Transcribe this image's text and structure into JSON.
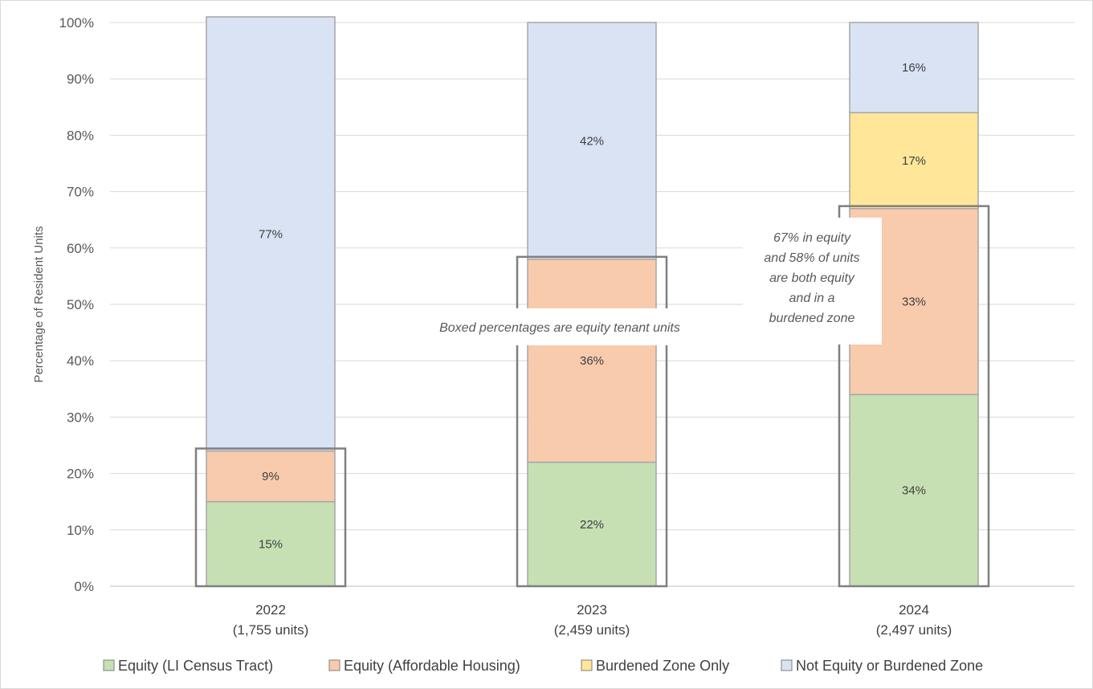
{
  "chart_data": {
    "type": "bar",
    "stacked": true,
    "title": "",
    "xlabel": "",
    "ylabel": "Percentage of Resident Units",
    "ylim": [
      0,
      100
    ],
    "yticks": [
      "0%",
      "10%",
      "20%",
      "30%",
      "40%",
      "50%",
      "60%",
      "70%",
      "80%",
      "90%",
      "100%"
    ],
    "grid": true,
    "legend_position": "bottom",
    "categories": [
      {
        "year": "2022",
        "units": "(1,755 units)"
      },
      {
        "year": "2023",
        "units": "(2,459 units)"
      },
      {
        "year": "2024",
        "units": "(2,497 units)"
      }
    ],
    "series": [
      {
        "name": "Equity (LI Census Tract)",
        "color": "#c6e0b4",
        "values": [
          15,
          22,
          34
        ],
        "labels": [
          "15%",
          "22%",
          "34%"
        ]
      },
      {
        "name": "Equity (Affordable Housing)",
        "color": "#f8cbad",
        "values": [
          9,
          36,
          33
        ],
        "labels": [
          "9%",
          "36%",
          "33%"
        ]
      },
      {
        "name": "Burdened Zone Only",
        "color": "#ffe699",
        "values": [
          0,
          0,
          17
        ],
        "labels": [
          "",
          "",
          "17%"
        ]
      },
      {
        "name": "Not Equity or Burdened Zone",
        "color": "#dae3f3",
        "values": [
          77,
          42,
          16
        ],
        "labels": [
          "77%",
          "42%",
          "16%"
        ]
      }
    ],
    "annotations": {
      "boxed_note": "Boxed percentages are equity tenant units",
      "note_2024_lines": [
        "67% in equity",
        "and 58% of units",
        "are both equity",
        "and in a",
        "burdened zone"
      ]
    }
  }
}
